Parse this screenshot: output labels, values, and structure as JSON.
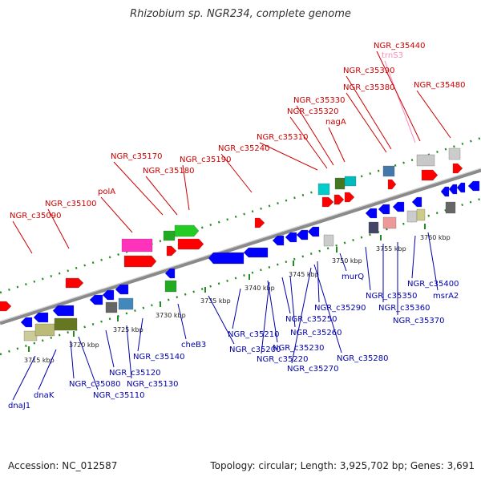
{
  "title": "Rhizobium sp. NGR234, complete genome",
  "footer": {
    "accession": "Accession: NC_012587",
    "summary": "Topology: circular; Length: 3,925,702 bp; Genes: 3,691"
  },
  "colors": {
    "backbone": "#8a8a8a",
    "upper_label": "#cc0000",
    "lower_label": "#0000aa",
    "rna_label": "#ff88bb",
    "dotted_track": "#228b22"
  },
  "ticks": [
    {
      "label": "3715 kbp"
    },
    {
      "label": "3720 kbp"
    },
    {
      "label": "3725 kbp"
    },
    {
      "label": "3730 kbp"
    },
    {
      "label": "3735 kbp"
    },
    {
      "label": "3740 kbp"
    },
    {
      "label": "3745 kbp"
    },
    {
      "label": "3750 kbp"
    },
    {
      "label": "3755 kbp"
    },
    {
      "label": "3760 kbp"
    }
  ],
  "upper_labels": [
    "NGR_c35090",
    "NGR_c35100",
    "polA",
    "NGR_c35170",
    "NGR_c35180",
    "NGR_c35190",
    "NGR_c35240",
    "NGR_c35310",
    "NGR_c35320",
    "NGR_c35330",
    "nagA",
    "NGR_c35380",
    "NGR_c35390",
    "trnS3",
    "NGR_c35440",
    "NGR_c35480"
  ],
  "lower_labels": [
    "dnaJ1",
    "dnaK",
    "NGR_c35080",
    "NGR_c35110",
    "NGR_c35120",
    "NGR_c35130",
    "NGR_c35140",
    "cheB3",
    "NGR_c35200",
    "NGR_c35210",
    "NGR_c35220",
    "NGR_c35230",
    "NGR_c35250",
    "NGR_c35260",
    "NGR_c35270",
    "NGR_c35280",
    "NGR_c35290",
    "murQ",
    "NGR_c35350",
    "NGR_c35360",
    "NGR_c35370",
    "NGR_c35400",
    "msrA2"
  ]
}
